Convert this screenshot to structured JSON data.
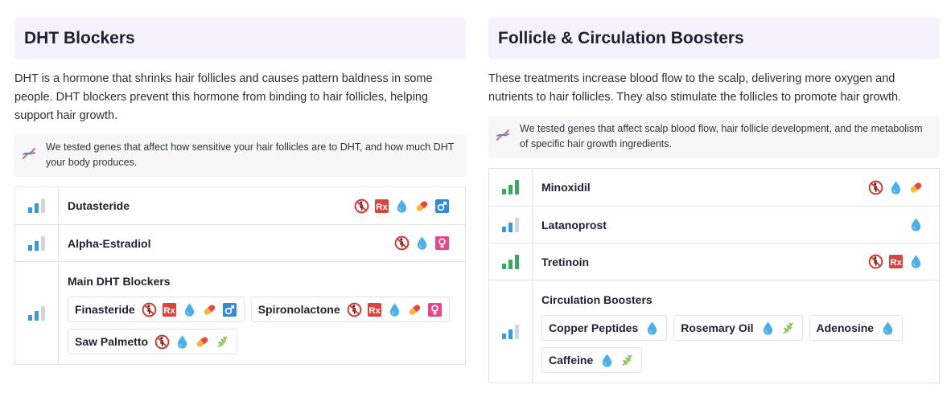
{
  "colors": {
    "header_bg": "#f6f2fd",
    "bar_blue": "#3a9ad9",
    "bar_green": "#3aaa5e",
    "bar_grey": "#d2d6dc"
  },
  "left": {
    "title": "DHT Blockers",
    "description": "DHT is a hormone that shrinks hair follicles and causes pattern baldness in some people. DHT blockers prevent this hormone from binding to hair follicles, helping support hair growth.",
    "note": "We tested genes that affect how sensitive your hair follicles are to DHT, and how much DHT your body produces.",
    "rows": [
      {
        "name": "Dutasteride",
        "strength": 2,
        "icons": [
          "no-pregnancy-icon",
          "rx-icon",
          "drop-icon",
          "pill-icon",
          "male-icon"
        ]
      },
      {
        "name": "Alpha-Estradiol",
        "strength": 2,
        "icons": [
          "no-pregnancy-icon",
          "drop-icon",
          "female-icon"
        ]
      }
    ],
    "group": {
      "title": "Main DHT Blockers",
      "strength": 2,
      "chips": [
        {
          "name": "Finasteride",
          "icons": [
            "no-pregnancy-icon",
            "rx-icon",
            "drop-icon",
            "pill-icon",
            "male-icon"
          ]
        },
        {
          "name": "Spironolactone",
          "icons": [
            "no-pregnancy-icon",
            "rx-icon",
            "drop-icon",
            "pill-icon",
            "female-icon"
          ]
        },
        {
          "name": "Saw Palmetto",
          "icons": [
            "no-pregnancy-icon",
            "drop-icon",
            "pill-icon",
            "leaf-icon"
          ]
        }
      ]
    }
  },
  "right": {
    "title": "Follicle & Circulation Boosters",
    "description": "These treatments increase blood flow to the scalp, delivering more oxygen and nutrients to hair follicles. They also stimulate the follicles to promote hair growth.",
    "note": "We tested genes that affect scalp blood flow, hair follicle development, and the metabolism of specific hair growth ingredients.",
    "rows": [
      {
        "name": "Minoxidil",
        "strength": 3,
        "icons": [
          "no-pregnancy-icon",
          "drop-icon",
          "pill-icon"
        ]
      },
      {
        "name": "Latanoprost",
        "strength": 2,
        "icons": [
          "drop-icon"
        ]
      },
      {
        "name": "Tretinoin",
        "strength": 3,
        "icons": [
          "no-pregnancy-icon",
          "rx-icon",
          "drop-icon"
        ]
      }
    ],
    "group": {
      "title": "Circulation Boosters",
      "strength": 2,
      "chips": [
        {
          "name": "Copper Peptides",
          "icons": [
            "drop-icon"
          ]
        },
        {
          "name": "Rosemary Oil",
          "icons": [
            "drop-icon",
            "leaf-icon"
          ]
        },
        {
          "name": "Adenosine",
          "icons": [
            "drop-icon"
          ]
        },
        {
          "name": "Caffeine",
          "icons": [
            "drop-icon",
            "leaf-icon"
          ]
        }
      ]
    }
  }
}
